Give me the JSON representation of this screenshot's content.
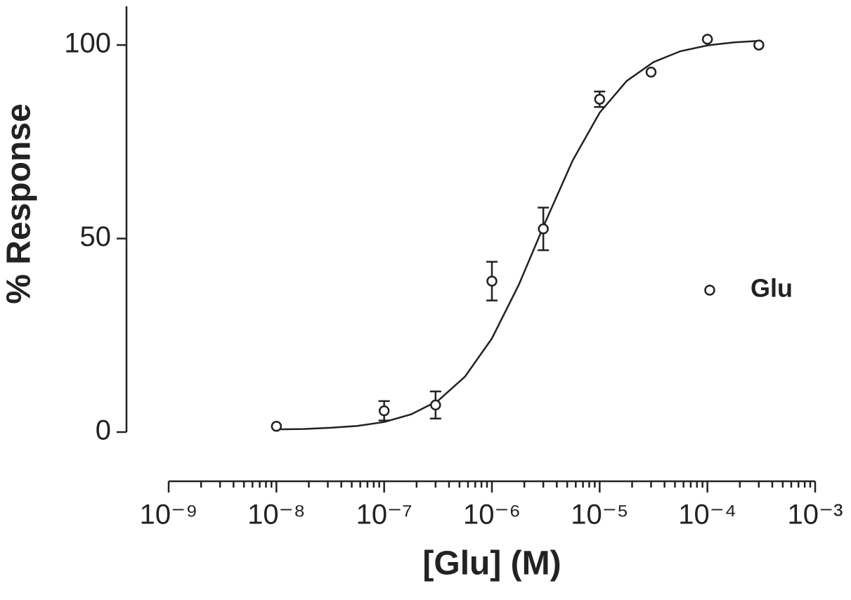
{
  "chart_data": {
    "type": "scatter",
    "x_label": "[Glu] (M)",
    "y_label": "% Response",
    "xscale": "log",
    "xlim": [
      1e-09,
      0.001
    ],
    "xticks": [
      {
        "value": 1e-09,
        "label": "10⁻⁹"
      },
      {
        "value": 1e-08,
        "label": "10⁻⁸"
      },
      {
        "value": 1e-07,
        "label": "10⁻⁷"
      },
      {
        "value": 1e-06,
        "label": "10⁻⁶"
      },
      {
        "value": 1e-05,
        "label": "10⁻⁵"
      },
      {
        "value": 0.0001,
        "label": "10⁻⁴"
      },
      {
        "value": 0.001,
        "label": "10⁻³"
      }
    ],
    "minor_ticks": true,
    "ylim": [
      0,
      110
    ],
    "yticks": [
      0,
      50,
      100
    ],
    "legend_position": "right",
    "series": [
      {
        "name": "Glu",
        "color": "#222222",
        "x": [
          1e-08,
          1e-07,
          3e-07,
          1e-06,
          3e-06,
          1e-05,
          3e-05,
          0.0001,
          0.0003
        ],
        "values": [
          1.5,
          5.5,
          7,
          39,
          52.5,
          86,
          93,
          101.5,
          100
        ],
        "errors": [
          null,
          2.5,
          3.5,
          5,
          5.5,
          2,
          null,
          null,
          null
        ]
      }
    ],
    "curve": {
      "color": "#222222",
      "x": [
        1e-08,
        1.78e-08,
        3.16e-08,
        5.62e-08,
        1e-07,
        1.78e-07,
        3.16e-07,
        5.62e-07,
        1e-06,
        1.78e-06,
        3.16e-06,
        5.62e-06,
        1e-05,
        1.78e-05,
        3.16e-05,
        5.62e-05,
        0.0001,
        0.000178,
        0.000316
      ],
      "values": [
        0.7,
        0.8,
        1.1,
        1.6,
        2.6,
        4.6,
        8.1,
        14.3,
        24.2,
        38.1,
        54.5,
        70.2,
        82.5,
        90.7,
        95.6,
        98.4,
        99.9,
        100.7,
        101.1
      ]
    }
  }
}
